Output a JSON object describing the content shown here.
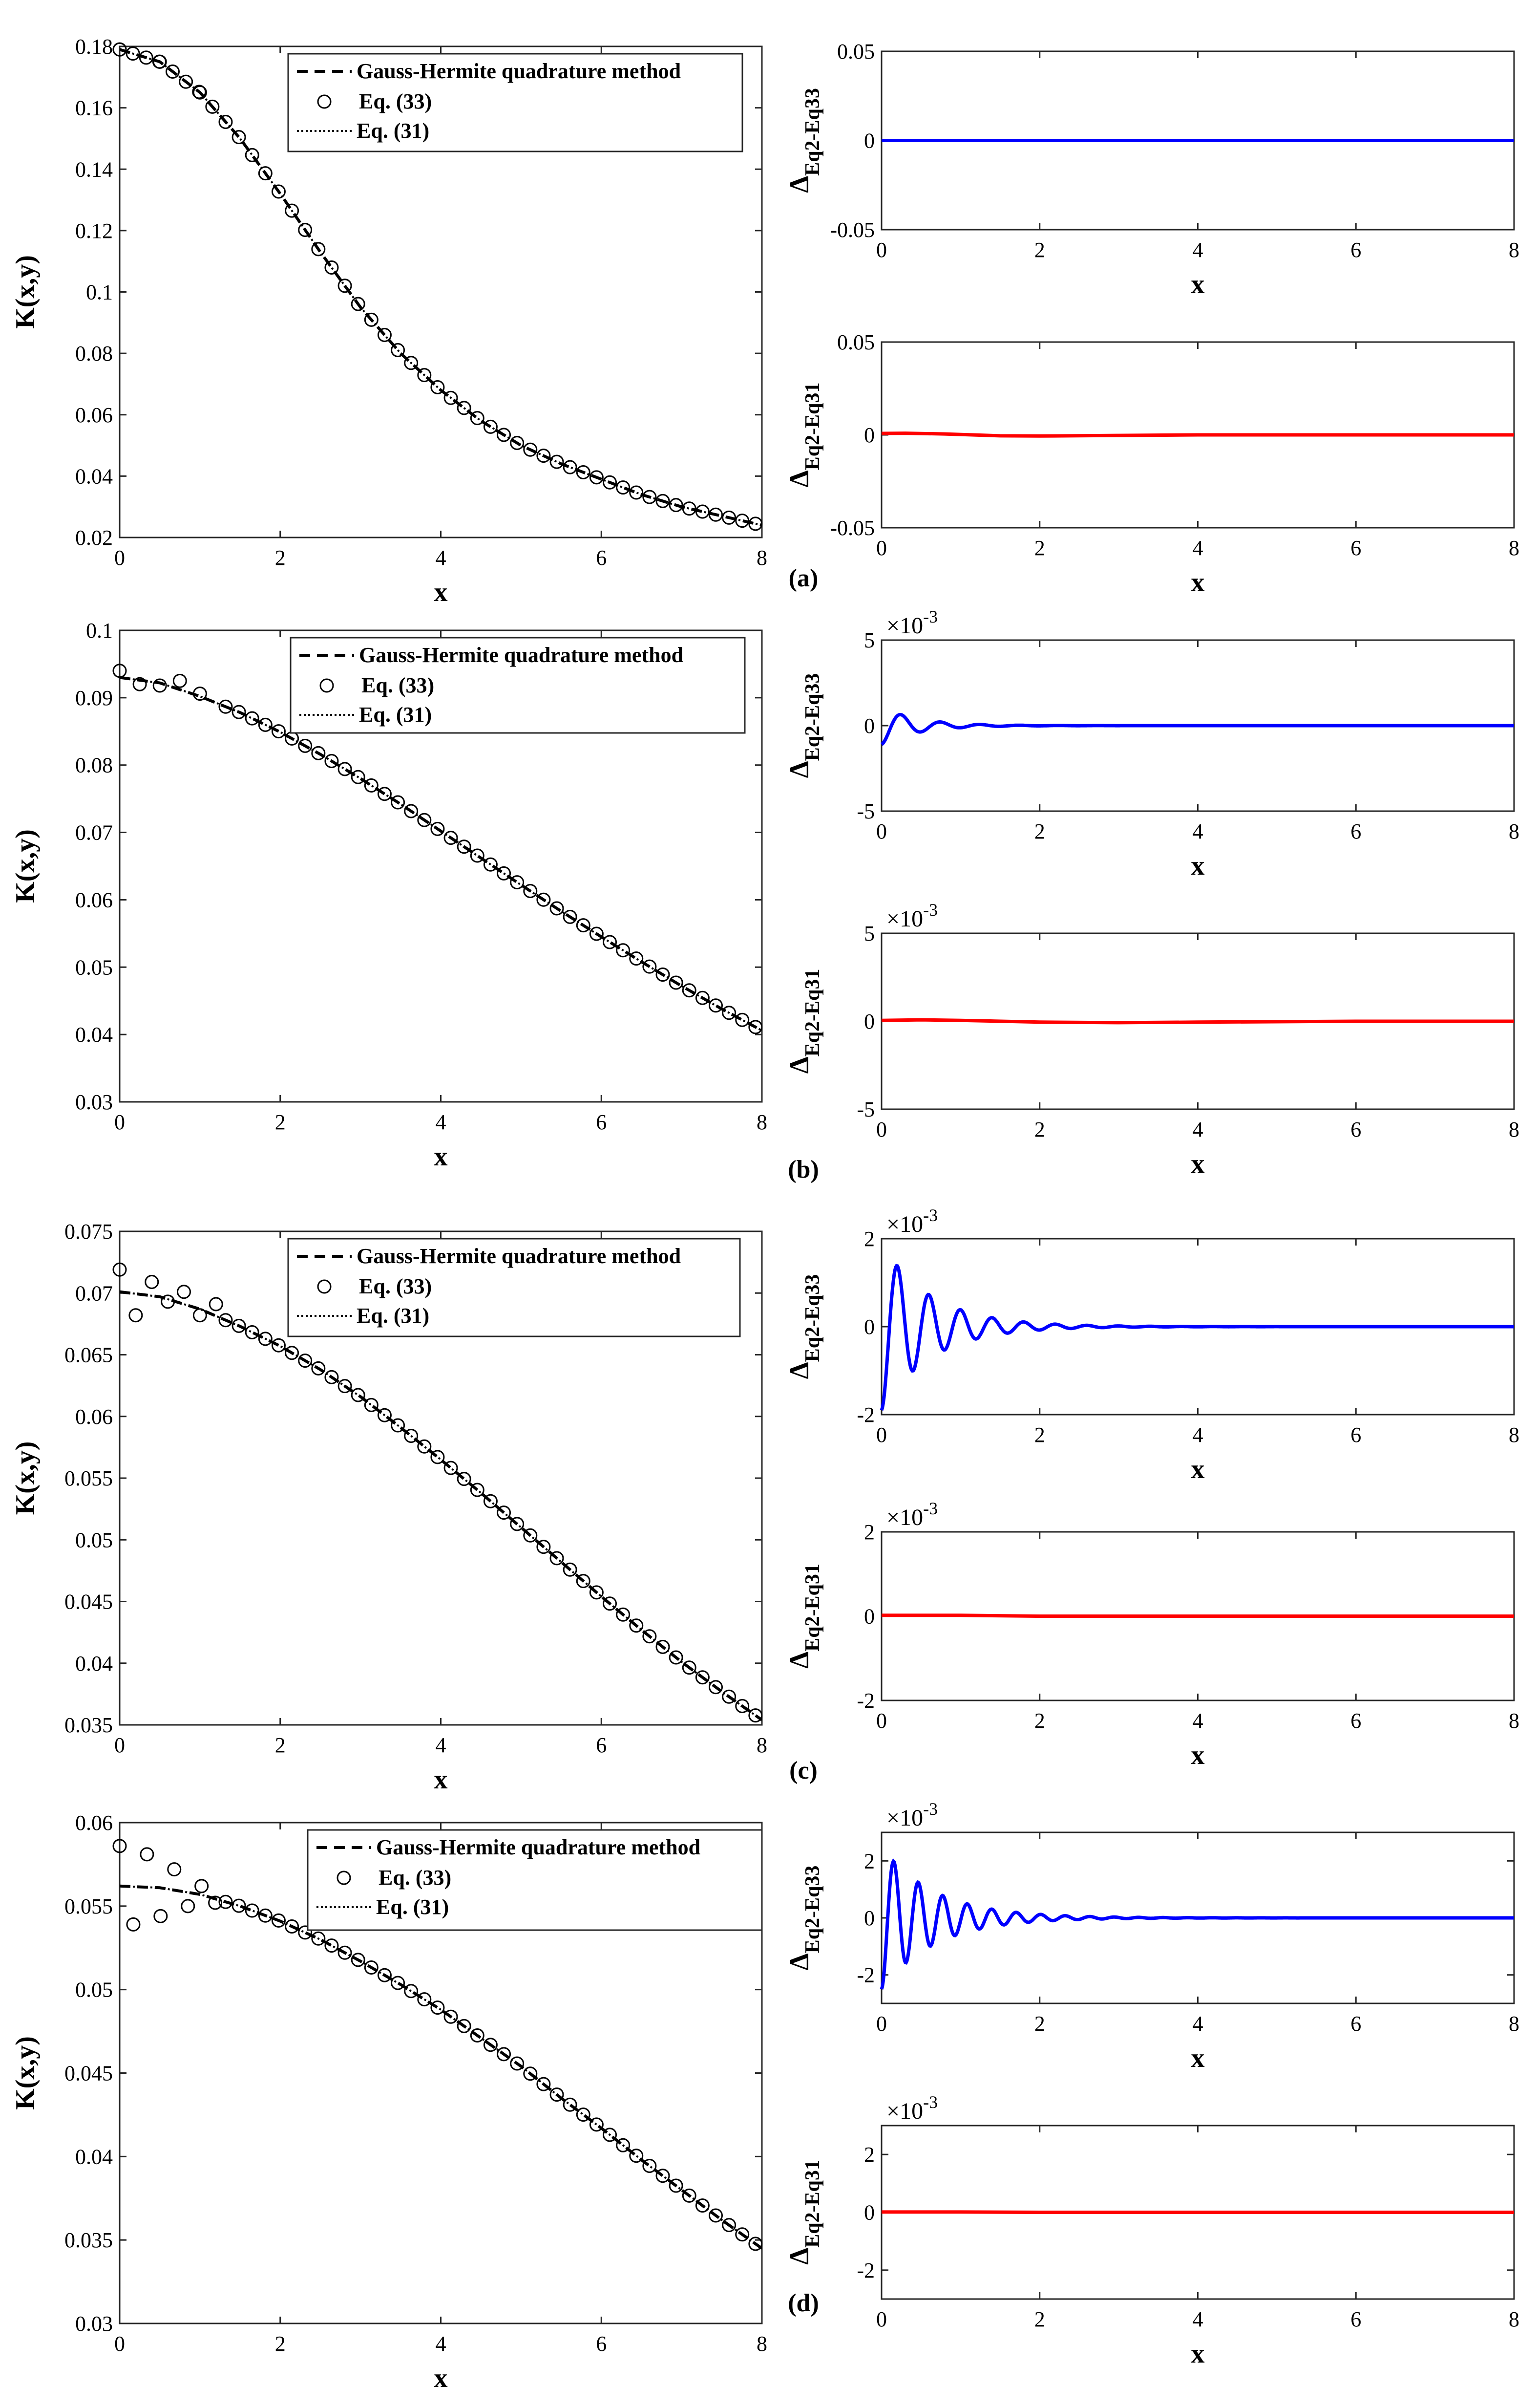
{
  "figure": {
    "panel_labels": [
      "(a)",
      "(b)",
      "(c)",
      "(d)"
    ]
  },
  "colors": {
    "eq33_residual": "#0000ff",
    "eq31_residual": "#ff0000",
    "main_curves": "#000000"
  },
  "chart_data": [
    {
      "id": "main-a",
      "type": "line",
      "xlabel": "x",
      "ylabel": "K(x,y)",
      "xlim": [
        0,
        8
      ],
      "ylim": [
        0.02,
        0.18
      ],
      "xticks": [
        "0",
        "2",
        "4",
        "6",
        "8"
      ],
      "yticks": [
        "0.02",
        "0.04",
        "0.06",
        "0.08",
        "0.1",
        "0.12",
        "0.14",
        "0.16",
        "0.18"
      ],
      "legend": [
        "Gauss-Hermite quadrature method",
        "Eq. (33)",
        "Eq. (31)"
      ],
      "series": [
        {
          "name": "Gauss-Hermite quadrature method",
          "style": "dashed",
          "x": [
            0,
            0.5,
            1,
            1.5,
            2,
            2.5,
            3,
            3.5,
            4,
            4.5,
            5,
            5.5,
            6,
            6.5,
            7,
            7.5,
            8
          ],
          "y": [
            0.179,
            0.175,
            0.165,
            0.15,
            0.132,
            0.113,
            0.095,
            0.08,
            0.068,
            0.058,
            0.05,
            0.044,
            0.039,
            0.034,
            0.03,
            0.027,
            0.024
          ]
        },
        {
          "name": "Eq. (33)",
          "style": "circles",
          "x": [
            0,
            0.5,
            1,
            1.5,
            2,
            2.5,
            3,
            3.5,
            4,
            4.5,
            5,
            5.5,
            6,
            6.5,
            7,
            7.5,
            8
          ],
          "y": [
            0.179,
            0.175,
            0.165,
            0.15,
            0.132,
            0.113,
            0.095,
            0.08,
            0.068,
            0.058,
            0.05,
            0.044,
            0.039,
            0.034,
            0.03,
            0.027,
            0.024
          ]
        },
        {
          "name": "Eq. (31)",
          "style": "dotted",
          "x": [
            0,
            0.5,
            1,
            1.5,
            2,
            2.5,
            3,
            3.5,
            4,
            4.5,
            5,
            5.5,
            6,
            6.5,
            7,
            7.5,
            8
          ],
          "y": [
            0.179,
            0.175,
            0.165,
            0.15,
            0.132,
            0.113,
            0.095,
            0.08,
            0.068,
            0.058,
            0.05,
            0.044,
            0.039,
            0.034,
            0.03,
            0.027,
            0.024
          ]
        }
      ]
    },
    {
      "id": "res33-a",
      "type": "line",
      "xlabel": "x",
      "ylabel": "Δ Eq2-Eq33",
      "xlim": [
        0,
        8
      ],
      "ylim": [
        -0.05,
        0.05
      ],
      "xticks": [
        "0",
        "2",
        "4",
        "6",
        "8"
      ],
      "yticks": [
        "-0.05",
        "0",
        "0.05"
      ],
      "multiplier": "",
      "series": [
        {
          "name": "Eq2-Eq33",
          "color": "#0000ff",
          "x": [
            0,
            0.5,
            1,
            2,
            4,
            6,
            8
          ],
          "y": [
            0,
            0,
            0,
            0,
            0,
            0,
            0
          ]
        }
      ]
    },
    {
      "id": "res31-a",
      "type": "line",
      "xlabel": "x",
      "ylabel": "Δ Eq2-Eq31",
      "xlim": [
        0,
        8
      ],
      "ylim": [
        -0.05,
        0.05
      ],
      "xticks": [
        "0",
        "2",
        "4",
        "6",
        "8"
      ],
      "yticks": [
        "-0.05",
        "0",
        "0.05"
      ],
      "multiplier": "",
      "series": [
        {
          "name": "Eq2-Eq31",
          "color": "#ff0000",
          "x": [
            0,
            0.3,
            0.8,
            1.5,
            2,
            3,
            4,
            6,
            8
          ],
          "y": [
            0.0008,
            0.0009,
            0.0005,
            -0.0005,
            -0.0006,
            -0.0003,
            0,
            0,
            0
          ]
        }
      ]
    },
    {
      "id": "main-b",
      "type": "line",
      "xlabel": "x",
      "ylabel": "K(x,y)",
      "xlim": [
        0,
        8
      ],
      "ylim": [
        0.03,
        0.1
      ],
      "xticks": [
        "0",
        "2",
        "4",
        "6",
        "8"
      ],
      "yticks": [
        "0.03",
        "0.04",
        "0.05",
        "0.06",
        "0.07",
        "0.08",
        "0.09",
        "0.1"
      ],
      "legend": [
        "Gauss-Hermite quadrature method",
        "Eq. (33)",
        "Eq. (31)"
      ],
      "series": [
        {
          "name": "Gauss-Hermite quadrature method",
          "style": "dashed",
          "x": [
            0,
            0.5,
            1,
            1.5,
            2,
            2.5,
            3,
            3.5,
            4,
            4.5,
            5,
            5.5,
            6,
            6.5,
            7,
            7.5,
            8
          ],
          "y": [
            0.093,
            0.0922,
            0.0902,
            0.0878,
            0.0849,
            0.0816,
            0.078,
            0.0742,
            0.0702,
            0.0662,
            0.0622,
            0.0583,
            0.0545,
            0.0508,
            0.0472,
            0.0438,
            0.0406
          ]
        },
        {
          "name": "Eq. (33)",
          "style": "circles",
          "x": [
            0,
            0.25,
            0.5,
            0.75,
            1,
            1.5,
            2,
            2.5,
            3,
            3.5,
            4,
            4.5,
            5,
            5.5,
            6,
            6.5,
            7,
            7.5,
            8
          ],
          "y": [
            0.094,
            0.092,
            0.0918,
            0.0925,
            0.0906,
            0.0878,
            0.0849,
            0.0816,
            0.078,
            0.0742,
            0.0702,
            0.0662,
            0.0622,
            0.0583,
            0.0545,
            0.0508,
            0.0472,
            0.0438,
            0.0406
          ]
        },
        {
          "name": "Eq. (31)",
          "style": "dotted",
          "x": [
            0,
            0.5,
            1,
            1.5,
            2,
            2.5,
            3,
            3.5,
            4,
            4.5,
            5,
            5.5,
            6,
            6.5,
            7,
            7.5,
            8
          ],
          "y": [
            0.093,
            0.0922,
            0.0902,
            0.0878,
            0.0849,
            0.0816,
            0.078,
            0.0742,
            0.0702,
            0.0662,
            0.0622,
            0.0583,
            0.0545,
            0.0508,
            0.0472,
            0.0438,
            0.0406
          ]
        }
      ]
    },
    {
      "id": "res33-b",
      "type": "line",
      "xlabel": "x",
      "ylabel": "Δ Eq2-Eq33",
      "xlim": [
        0,
        8
      ],
      "ylim": [
        -5,
        5
      ],
      "xticks": [
        "0",
        "2",
        "4",
        "6",
        "8"
      ],
      "yticks": [
        "-5",
        "0",
        "5"
      ],
      "multiplier": "×10^-3",
      "series": [
        {
          "name": "Eq2-Eq33",
          "color": "#0000ff",
          "oscillation": {
            "amplitude": 1.1,
            "decay": 2.2,
            "period": 0.5,
            "phase0": -1.0
          },
          "x_range": [
            0,
            8
          ]
        }
      ]
    },
    {
      "id": "res31-b",
      "type": "line",
      "xlabel": "x",
      "ylabel": "Δ Eq2-Eq31",
      "xlim": [
        0,
        8
      ],
      "ylim": [
        -5,
        5
      ],
      "xticks": [
        "0",
        "2",
        "4",
        "6",
        "8"
      ],
      "yticks": [
        "-5",
        "0",
        "5"
      ],
      "multiplier": "×10^-3",
      "series": [
        {
          "name": "Eq2-Eq31",
          "color": "#ff0000",
          "x": [
            0,
            0.5,
            1,
            2,
            3,
            4,
            6,
            8
          ],
          "y": [
            0.05,
            0.08,
            0.05,
            -0.05,
            -0.08,
            -0.05,
            0,
            0
          ]
        }
      ]
    },
    {
      "id": "main-c",
      "type": "line",
      "xlabel": "x",
      "ylabel": "K(x,y)",
      "xlim": [
        0,
        8
      ],
      "ylim": [
        0.035,
        0.075
      ],
      "xticks": [
        "0",
        "2",
        "4",
        "6",
        "8"
      ],
      "yticks": [
        "0.035",
        "0.04",
        "0.045",
        "0.05",
        "0.055",
        "0.06",
        "0.065",
        "0.07",
        "0.075"
      ],
      "legend": [
        "Gauss-Hermite quadrature method",
        "Eq. (33)",
        "Eq. (31)"
      ],
      "series": [
        {
          "name": "Gauss-Hermite quadrature method",
          "style": "dashed",
          "x": [
            0,
            0.5,
            1,
            1.5,
            2,
            2.5,
            3,
            3.5,
            4,
            4.5,
            5,
            5.5,
            6,
            6.5,
            7,
            7.5,
            8
          ],
          "y": [
            0.0701,
            0.0697,
            0.0687,
            0.0673,
            0.0657,
            0.0638,
            0.0616,
            0.0591,
            0.0565,
            0.0538,
            0.051,
            0.0482,
            0.0454,
            0.0427,
            0.0401,
            0.0377,
            0.0354
          ]
        },
        {
          "name": "Eq. (33)",
          "style": "circles",
          "x": [
            0,
            0.2,
            0.4,
            0.6,
            0.8,
            1.0,
            1.2,
            1.5,
            2,
            2.5,
            3,
            3.5,
            4,
            4.5,
            5,
            5.5,
            6,
            6.5,
            7,
            7.5,
            8
          ],
          "y": [
            0.0719,
            0.0682,
            0.0709,
            0.0693,
            0.0701,
            0.0682,
            0.0691,
            0.0673,
            0.0657,
            0.0638,
            0.0616,
            0.0591,
            0.0565,
            0.0538,
            0.051,
            0.0482,
            0.0454,
            0.0427,
            0.0401,
            0.0377,
            0.0354
          ]
        },
        {
          "name": "Eq. (31)",
          "style": "dotted",
          "x": [
            0,
            0.5,
            1,
            1.5,
            2,
            2.5,
            3,
            3.5,
            4,
            4.5,
            5,
            5.5,
            6,
            6.5,
            7,
            7.5,
            8
          ],
          "y": [
            0.0701,
            0.0697,
            0.0687,
            0.0673,
            0.0657,
            0.0638,
            0.0616,
            0.0591,
            0.0565,
            0.0538,
            0.051,
            0.0482,
            0.0454,
            0.0427,
            0.0401,
            0.0377,
            0.0354
          ]
        }
      ]
    },
    {
      "id": "res33-c",
      "type": "line",
      "xlabel": "x",
      "ylabel": "Δ Eq2-Eq33",
      "xlim": [
        0,
        8
      ],
      "ylim": [
        -2,
        2
      ],
      "xticks": [
        "0",
        "2",
        "4",
        "6",
        "8"
      ],
      "yticks": [
        "-2",
        "0",
        "2"
      ],
      "multiplier": "×10^-3",
      "series": [
        {
          "name": "Eq2-Eq33",
          "color": "#0000ff",
          "oscillation": {
            "amplitude": 1.9,
            "decay": 1.6,
            "period": 0.4,
            "phase0": -1.0
          },
          "x_range": [
            0,
            8
          ]
        }
      ]
    },
    {
      "id": "res31-c",
      "type": "line",
      "xlabel": "x",
      "ylabel": "Δ Eq2-Eq31",
      "xlim": [
        0,
        8
      ],
      "ylim": [
        -2,
        2
      ],
      "xticks": [
        "0",
        "2",
        "4",
        "6",
        "8"
      ],
      "yticks": [
        "-2",
        "0",
        "2"
      ],
      "multiplier": "×10^-3",
      "series": [
        {
          "name": "Eq2-Eq31",
          "color": "#ff0000",
          "x": [
            0,
            1,
            2,
            4,
            6,
            8
          ],
          "y": [
            0.02,
            0.02,
            0,
            0,
            0,
            0
          ]
        }
      ]
    },
    {
      "id": "main-d",
      "type": "line",
      "xlabel": "x",
      "ylabel": "K(x,y)",
      "xlim": [
        0,
        8
      ],
      "ylim": [
        0.03,
        0.06
      ],
      "xticks": [
        "0",
        "2",
        "4",
        "6",
        "8"
      ],
      "yticks": [
        "0.03",
        "0.035",
        "0.04",
        "0.045",
        "0.05",
        "0.055",
        "0.06"
      ],
      "legend": [
        "Gauss-Hermite quadrature method",
        "Eq. (33)",
        "Eq. (31)"
      ],
      "series": [
        {
          "name": "Gauss-Hermite quadrature method",
          "style": "dashed",
          "x": [
            0,
            0.5,
            1,
            1.5,
            2,
            2.5,
            3,
            3.5,
            4,
            4.5,
            5,
            5.5,
            6,
            6.5,
            7,
            7.5,
            8
          ],
          "y": [
            0.0562,
            0.0561,
            0.0557,
            0.055,
            0.0541,
            0.053,
            0.0517,
            0.0503,
            0.0488,
            0.0471,
            0.0454,
            0.0435,
            0.0417,
            0.0398,
            0.038,
            0.0362,
            0.0345
          ]
        },
        {
          "name": "Eq. (33)",
          "style": "circles",
          "x": [
            0,
            0.17,
            0.34,
            0.51,
            0.68,
            0.85,
            1.02,
            1.19,
            1.5,
            2,
            2.5,
            3,
            3.5,
            4,
            4.5,
            5,
            5.5,
            6,
            6.5,
            7,
            7.5,
            8
          ],
          "y": [
            0.0586,
            0.0539,
            0.0581,
            0.0544,
            0.0572,
            0.055,
            0.0562,
            0.0552,
            0.055,
            0.0541,
            0.053,
            0.0517,
            0.0503,
            0.0488,
            0.0471,
            0.0454,
            0.0435,
            0.0417,
            0.0398,
            0.038,
            0.0362,
            0.0345
          ]
        },
        {
          "name": "Eq. (31)",
          "style": "dotted",
          "x": [
            0,
            0.5,
            1,
            1.5,
            2,
            2.5,
            3,
            3.5,
            4,
            4.5,
            5,
            5.5,
            6,
            6.5,
            7,
            7.5,
            8
          ],
          "y": [
            0.0562,
            0.0561,
            0.0557,
            0.055,
            0.0541,
            0.053,
            0.0517,
            0.0503,
            0.0488,
            0.0471,
            0.0454,
            0.0435,
            0.0417,
            0.0398,
            0.038,
            0.0362,
            0.0345
          ]
        }
      ]
    },
    {
      "id": "res33-d",
      "type": "line",
      "xlabel": "x",
      "ylabel": "Δ Eq2-Eq33",
      "xlim": [
        0,
        8
      ],
      "ylim": [
        -3,
        3
      ],
      "xticks": [
        "0",
        "2",
        "4",
        "6",
        "8"
      ],
      "yticks": [
        "-2",
        "0",
        "2"
      ],
      "multiplier": "×10^-3",
      "series": [
        {
          "name": "Eq2-Eq33",
          "color": "#0000ff",
          "oscillation": {
            "amplitude": 2.5,
            "decay": 1.5,
            "period": 0.31,
            "phase0": -1.0
          },
          "x_range": [
            0,
            8
          ]
        }
      ]
    },
    {
      "id": "res31-d",
      "type": "line",
      "xlabel": "x",
      "ylabel": "Δ Eq2-Eq31",
      "xlim": [
        0,
        8
      ],
      "ylim": [
        -3,
        3
      ],
      "xticks": [
        "0",
        "2",
        "4",
        "6",
        "8"
      ],
      "yticks": [
        "-2",
        "0",
        "2"
      ],
      "multiplier": "×10^-3",
      "series": [
        {
          "name": "Eq2-Eq31",
          "color": "#ff0000",
          "x": [
            0,
            1,
            2,
            4,
            6,
            8
          ],
          "y": [
            0.01,
            0.01,
            0,
            0,
            0,
            0
          ]
        }
      ]
    }
  ]
}
